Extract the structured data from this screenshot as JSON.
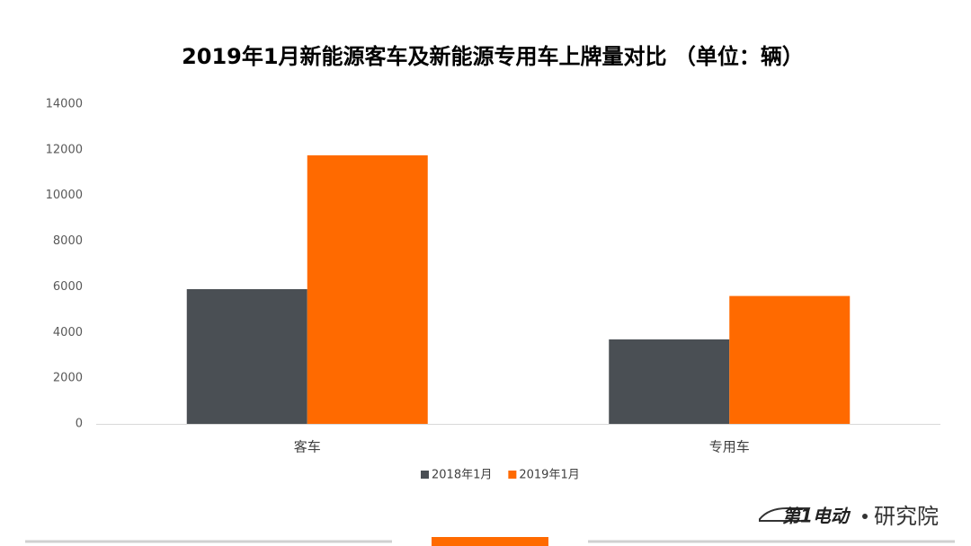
{
  "chart_data": {
    "type": "bar",
    "title": "2019年1月新能源客车及新能源专用车上牌量对比 （单位：辆）",
    "categories": [
      "客车",
      "专用车"
    ],
    "series": [
      {
        "name": "2018年1月",
        "color": "#4a4f54",
        "values": [
          5900,
          3700
        ]
      },
      {
        "name": "2019年1月",
        "color": "#ff6a00",
        "values": [
          11760,
          5600
        ]
      }
    ],
    "ylim": [
      0,
      14000
    ],
    "yticks": [
      0,
      2000,
      4000,
      6000,
      8000,
      10000,
      12000,
      14000
    ],
    "grid": false,
    "legend": "bottom"
  },
  "logo": {
    "brand": "第1电动",
    "sub": "研究院"
  }
}
